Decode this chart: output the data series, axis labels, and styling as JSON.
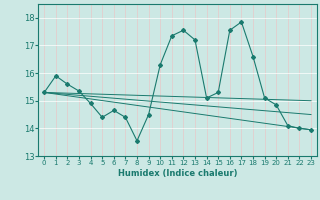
{
  "xlabel": "Humidex (Indice chaleur)",
  "ylabel": "",
  "xlim": [
    -0.5,
    23.5
  ],
  "ylim": [
    13,
    18.5
  ],
  "yticks": [
    13,
    14,
    15,
    16,
    17,
    18
  ],
  "xticks": [
    0,
    1,
    2,
    3,
    4,
    5,
    6,
    7,
    8,
    9,
    10,
    11,
    12,
    13,
    14,
    15,
    16,
    17,
    18,
    19,
    20,
    21,
    22,
    23
  ],
  "bg_color": "#cce8e4",
  "grid_color": "#aed4cf",
  "line_color": "#1a7a6e",
  "series": {
    "main": {
      "x": [
        0,
        1,
        2,
        3,
        4,
        5,
        6,
        7,
        8,
        9,
        10,
        11,
        12,
        13,
        14,
        15,
        16,
        17,
        18,
        19,
        20,
        21,
        22,
        23
      ],
      "y": [
        15.3,
        15.9,
        15.6,
        15.35,
        14.9,
        14.4,
        14.65,
        14.4,
        13.55,
        14.5,
        16.3,
        17.35,
        17.55,
        17.2,
        15.1,
        15.3,
        17.55,
        17.85,
        16.6,
        15.1,
        14.85,
        14.1,
        14.0,
        13.95
      ]
    },
    "line1": {
      "x": [
        0,
        23
      ],
      "y": [
        15.3,
        13.95
      ]
    },
    "line2": {
      "x": [
        0,
        23
      ],
      "y": [
        15.3,
        15.0
      ]
    },
    "line3": {
      "x": [
        0,
        23
      ],
      "y": [
        15.3,
        14.5
      ]
    }
  }
}
